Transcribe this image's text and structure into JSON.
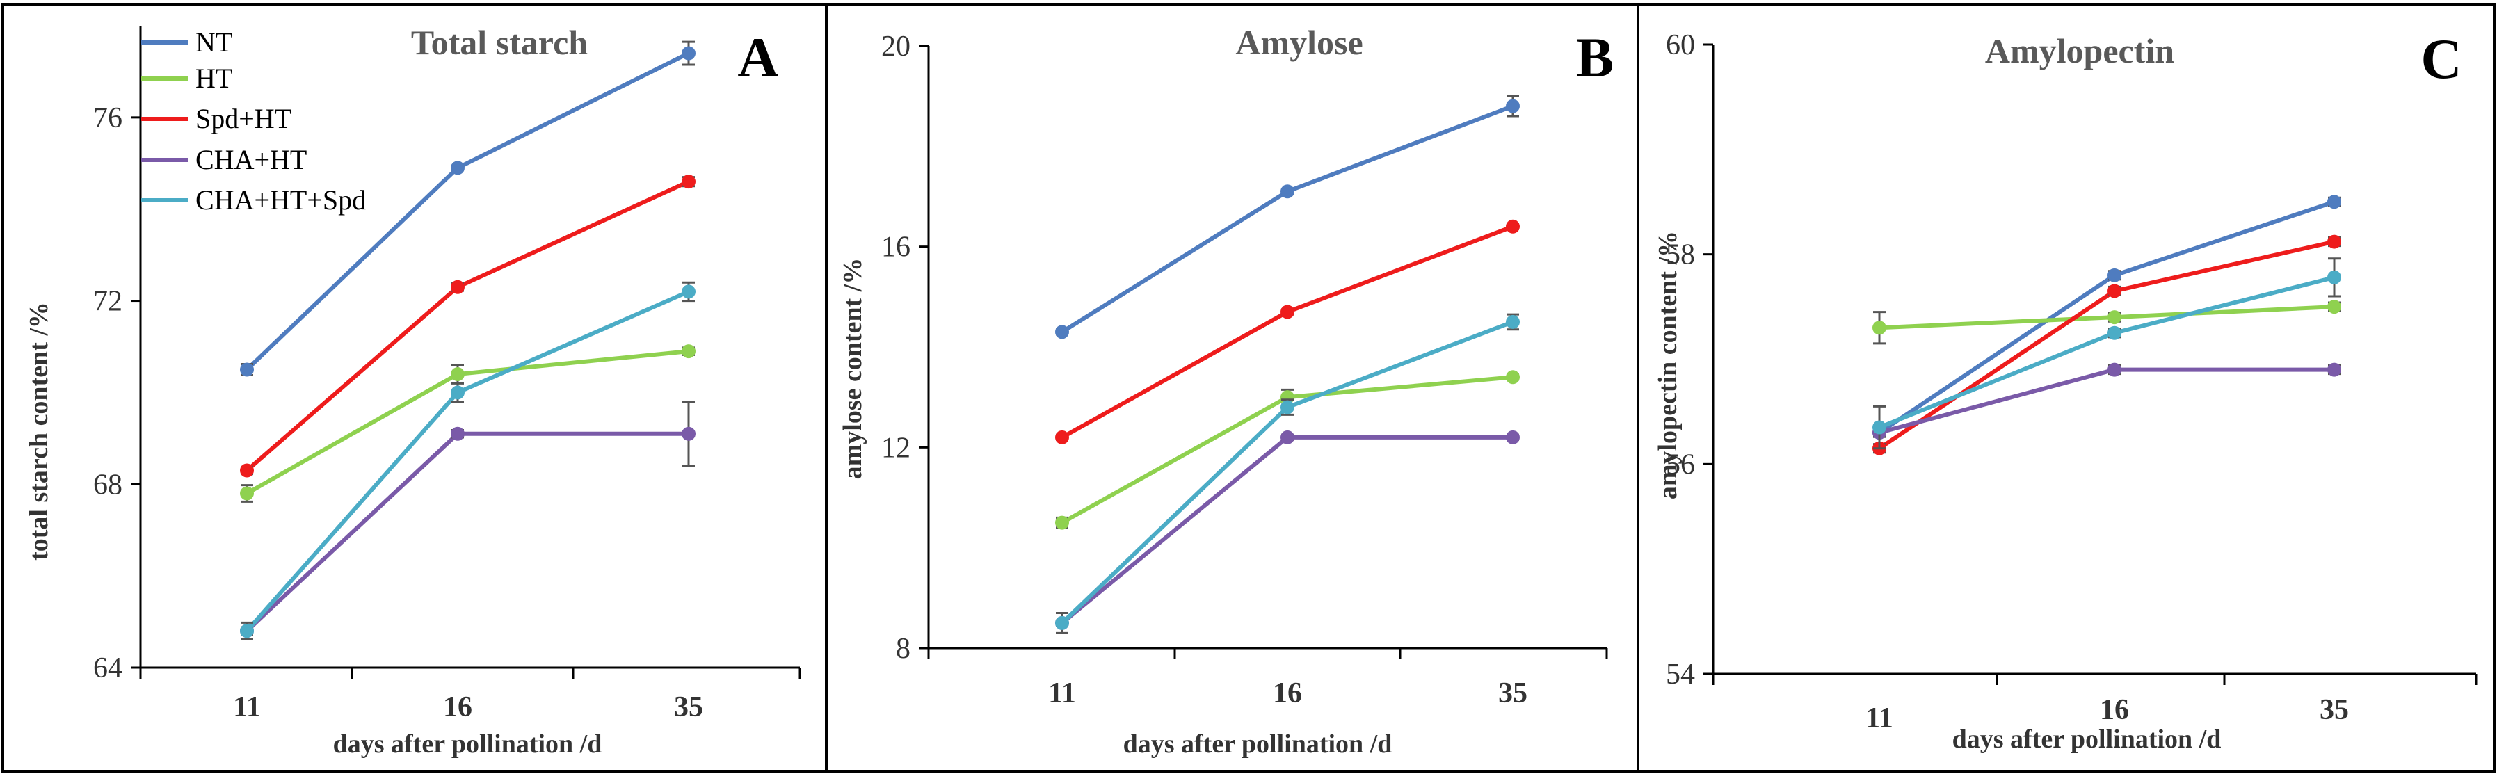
{
  "colors": {
    "NT": "#4F7CBF",
    "HT": "#8FD14F",
    "Spd+HT": "#EE1C1C",
    "CHA+HT": "#7A5AA8",
    "CHA+HT+Spd": "#4BACC6",
    "axis": "#000000",
    "errorbar": "#555555"
  },
  "legend": [
    "NT",
    "HT",
    "Spd+HT",
    "CHA+HT",
    "CHA+HT+Spd"
  ],
  "chart_data": [
    {
      "id": "A",
      "type": "line",
      "panel_letter": "A",
      "title": "Total starch",
      "xlabel": "days after pollination /d",
      "ylabel": "total starch content /%",
      "categories": [
        "11",
        "16",
        "35"
      ],
      "ylim": [
        64,
        78
      ],
      "yticks": [
        64,
        68,
        72,
        76
      ],
      "yticklabels": [
        "64",
        "68",
        "72",
        "76"
      ],
      "legend_position": "top-left",
      "series": [
        {
          "name": "NT",
          "values": [
            70.5,
            74.9,
            77.4
          ],
          "errors": [
            0.12,
            0.05,
            0.25
          ]
        },
        {
          "name": "HT",
          "values": [
            67.8,
            70.4,
            70.9
          ],
          "errors": [
            0.18,
            0.2,
            0.08
          ]
        },
        {
          "name": "Spd+HT",
          "values": [
            68.3,
            72.3,
            74.6
          ],
          "errors": [
            0.08,
            0.08,
            0.1
          ]
        },
        {
          "name": "CHA+HT",
          "values": [
            64.8,
            69.1,
            69.1
          ],
          "errors": [
            0.08,
            0.08,
            0.7
          ]
        },
        {
          "name": "CHA+HT+Spd",
          "values": [
            64.8,
            70.0,
            72.2
          ],
          "errors": [
            0.18,
            0.2,
            0.2
          ]
        }
      ]
    },
    {
      "id": "B",
      "type": "line",
      "panel_letter": "B",
      "title": "Amylose",
      "xlabel": "days after pollination /d",
      "ylabel": "amylose content /%",
      "categories": [
        "11",
        "16",
        "35"
      ],
      "ylim": [
        8,
        20
      ],
      "yticks": [
        8,
        12,
        16,
        20
      ],
      "yticklabels": [
        "8",
        "12",
        "16",
        "20"
      ],
      "legend_position": "none",
      "series": [
        {
          "name": "NT",
          "values": [
            14.3,
            17.1,
            18.8
          ],
          "errors": [
            0.05,
            0.05,
            0.2
          ]
        },
        {
          "name": "HT",
          "values": [
            10.5,
            13.0,
            13.4
          ],
          "errors": [
            0.1,
            0.15,
            0.05
          ]
        },
        {
          "name": "Spd+HT",
          "values": [
            12.2,
            14.7,
            16.4
          ],
          "errors": [
            0.05,
            0.05,
            0.05
          ]
        },
        {
          "name": "CHA+HT",
          "values": [
            8.5,
            12.2,
            12.2
          ],
          "errors": [
            0.05,
            0.05,
            0.05
          ]
        },
        {
          "name": "CHA+HT+Spd",
          "values": [
            8.5,
            12.8,
            14.5
          ],
          "errors": [
            0.2,
            0.15,
            0.15
          ]
        }
      ]
    },
    {
      "id": "C",
      "type": "line",
      "panel_letter": "C",
      "title": "Amylopectin",
      "xlabel": "days after pollination /d",
      "ylabel": "amylopectin content /%",
      "categories": [
        "11",
        "16",
        "35"
      ],
      "ylim": [
        54,
        60
      ],
      "yticks": [
        54,
        56,
        58,
        60
      ],
      "yticklabels": [
        "54",
        "56",
        "58",
        "60"
      ],
      "legend_position": "none",
      "series": [
        {
          "name": "NT",
          "values": [
            56.3,
            57.8,
            58.5
          ],
          "errors": [
            0.04,
            0.04,
            0.04
          ]
        },
        {
          "name": "HT",
          "values": [
            57.3,
            57.4,
            57.5
          ],
          "errors": [
            0.15,
            0.04,
            0.04
          ]
        },
        {
          "name": "Spd+HT",
          "values": [
            56.15,
            57.65,
            58.12
          ],
          "errors": [
            0.04,
            0.04,
            0.04
          ]
        },
        {
          "name": "CHA+HT",
          "values": [
            56.3,
            56.9,
            56.9
          ],
          "errors": [
            0.04,
            0.04,
            0.04
          ]
        },
        {
          "name": "CHA+HT+Spd",
          "values": [
            56.35,
            57.25,
            57.78
          ],
          "errors": [
            0.2,
            0.04,
            0.18
          ]
        }
      ]
    }
  ]
}
